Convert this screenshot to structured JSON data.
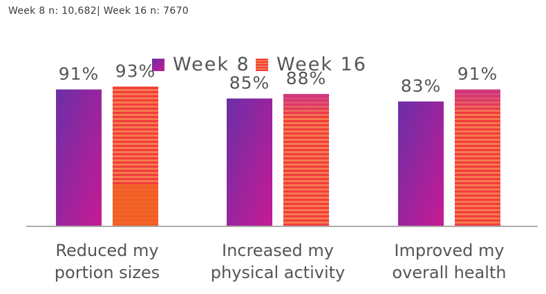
{
  "subtitle": "Week 8 n: 10,682| Week 16 n: 7670",
  "colors": {
    "week8_start": "#6a2fa8",
    "week8_end": "#c71a93",
    "week16_a": "#f33d3d",
    "week16_b": "#f47a4a",
    "week16_top": "#c8318e",
    "week16_low": "#f26222",
    "axis": "#aaaaaa",
    "text": "#555555"
  },
  "chart_data": {
    "type": "bar",
    "categories": [
      [
        "Reduced my",
        "portion sizes"
      ],
      [
        "Increased my",
        "physical activity"
      ],
      [
        "Improved my",
        "overall health"
      ]
    ],
    "series": [
      {
        "name": "Week 8",
        "values": [
          91,
          85,
          83
        ],
        "labels": [
          "91%",
          "85%",
          "83%"
        ]
      },
      {
        "name": "Week 16",
        "values": [
          93,
          88,
          91
        ],
        "labels": [
          "93%",
          "88%",
          "91%"
        ]
      }
    ],
    "ylim": [
      0,
      100
    ],
    "grid": false,
    "legend": "top-center",
    "xlabel": "",
    "ylabel": ""
  }
}
